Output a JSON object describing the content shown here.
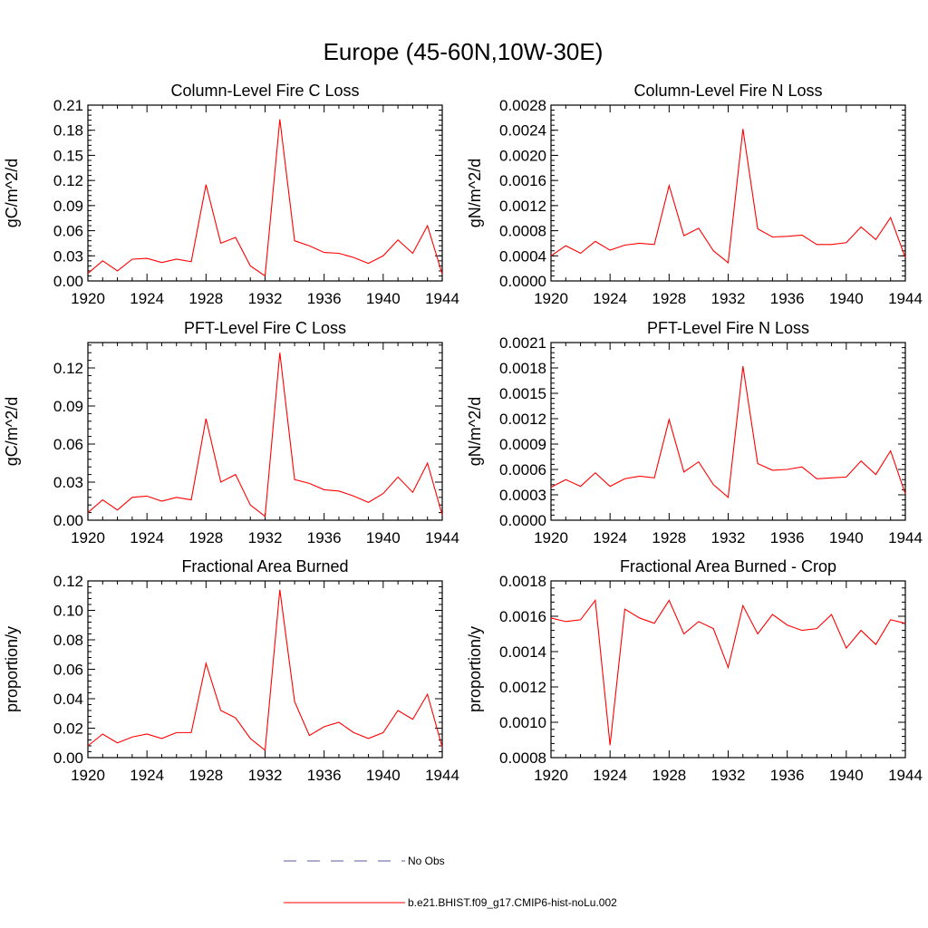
{
  "figure": {
    "title": "Europe (45-60N,10W-30E)"
  },
  "legend": {
    "items": [
      {
        "label": "No Obs",
        "color": "#5a5aa0",
        "style": "dashed"
      },
      {
        "label": "b.e21.BHIST.f09_g17.CMIP6-hist-noLu.002",
        "color": "#ff0000",
        "style": "solid"
      }
    ]
  },
  "chart_data": [
    {
      "type": "line",
      "title": "Column-Level Fire C Loss",
      "xlabel": "",
      "ylabel": "gC/m^2/d",
      "xlim": [
        1920,
        1944
      ],
      "ylim": [
        0,
        0.21
      ],
      "xticks": [
        "1920",
        "1924",
        "1928",
        "1932",
        "1936",
        "1940",
        "1944"
      ],
      "yticks": [
        "0.00",
        "0.03",
        "0.06",
        "0.09",
        "0.12",
        "0.15",
        "0.18",
        "0.21"
      ],
      "series": [
        {
          "name": "b.e21.BHIST.f09_g17.CMIP6-hist-noLu.002",
          "color": "#ff0000",
          "x": [
            1920,
            1921,
            1922,
            1923,
            1924,
            1925,
            1926,
            1927,
            1928,
            1929,
            1930,
            1931,
            1932,
            1933,
            1934,
            1935,
            1936,
            1937,
            1938,
            1939,
            1940,
            1941,
            1942,
            1943,
            1944
          ],
          "values": [
            0.009,
            0.024,
            0.012,
            0.026,
            0.027,
            0.022,
            0.026,
            0.023,
            0.115,
            0.045,
            0.052,
            0.018,
            0.006,
            0.193,
            0.048,
            0.042,
            0.034,
            0.033,
            0.028,
            0.021,
            0.03,
            0.049,
            0.033,
            0.066,
            0.008
          ]
        }
      ]
    },
    {
      "type": "line",
      "title": "Column-Level Fire N Loss",
      "xlabel": "",
      "ylabel": "gN/m^2/d",
      "xlim": [
        1920,
        1944
      ],
      "ylim": [
        0,
        0.0028
      ],
      "xticks": [
        "1920",
        "1924",
        "1928",
        "1932",
        "1936",
        "1940",
        "1944"
      ],
      "yticks": [
        "0.0000",
        "0.0004",
        "0.0008",
        "0.0012",
        "0.0016",
        "0.0020",
        "0.0024",
        "0.0028"
      ],
      "series": [
        {
          "name": "b.e21.BHIST.f09_g17.CMIP6-hist-noLu.002",
          "color": "#ff0000",
          "x": [
            1920,
            1921,
            1922,
            1923,
            1924,
            1925,
            1926,
            1927,
            1928,
            1929,
            1930,
            1931,
            1932,
            1933,
            1934,
            1935,
            1936,
            1937,
            1938,
            1939,
            1940,
            1941,
            1942,
            1943,
            1944
          ],
          "values": [
            0.0004,
            0.00056,
            0.00044,
            0.00063,
            0.00049,
            0.00057,
            0.0006,
            0.00058,
            0.00152,
            0.00072,
            0.00084,
            0.00048,
            0.00029,
            0.00242,
            0.00083,
            0.0007,
            0.00071,
            0.00073,
            0.00058,
            0.00058,
            0.00061,
            0.00086,
            0.00066,
            0.00101,
            0.00037
          ]
        }
      ]
    },
    {
      "type": "line",
      "title": "PFT-Level Fire C Loss",
      "xlabel": "",
      "ylabel": "gC/m^2/d",
      "xlim": [
        1920,
        1944
      ],
      "ylim": [
        0,
        0.14
      ],
      "xticks": [
        "1920",
        "1924",
        "1928",
        "1932",
        "1936",
        "1940",
        "1944"
      ],
      "yticks": [
        "0.00",
        "0.03",
        "0.06",
        "0.09",
        "0.12"
      ],
      "series": [
        {
          "name": "b.e21.BHIST.f09_g17.CMIP6-hist-noLu.002",
          "color": "#ff0000",
          "x": [
            1920,
            1921,
            1922,
            1923,
            1924,
            1925,
            1926,
            1927,
            1928,
            1929,
            1930,
            1931,
            1932,
            1933,
            1934,
            1935,
            1936,
            1937,
            1938,
            1939,
            1940,
            1941,
            1942,
            1943,
            1944
          ],
          "values": [
            0.006,
            0.016,
            0.008,
            0.018,
            0.019,
            0.015,
            0.018,
            0.016,
            0.08,
            0.03,
            0.036,
            0.012,
            0.003,
            0.132,
            0.032,
            0.029,
            0.024,
            0.023,
            0.019,
            0.014,
            0.021,
            0.034,
            0.022,
            0.045,
            0.004
          ]
        }
      ]
    },
    {
      "type": "line",
      "title": "PFT-Level Fire N Loss",
      "xlabel": "",
      "ylabel": "gN/m^2/d",
      "xlim": [
        1920,
        1944
      ],
      "ylim": [
        0,
        0.0021
      ],
      "xticks": [
        "1920",
        "1924",
        "1928",
        "1932",
        "1936",
        "1940",
        "1944"
      ],
      "yticks": [
        "0.0000",
        "0.0003",
        "0.0006",
        "0.0009",
        "0.0012",
        "0.0015",
        "0.0018",
        "0.0021"
      ],
      "series": [
        {
          "name": "b.e21.BHIST.f09_g17.CMIP6-hist-noLu.002",
          "color": "#ff0000",
          "x": [
            1920,
            1921,
            1922,
            1923,
            1924,
            1925,
            1926,
            1927,
            1928,
            1929,
            1930,
            1931,
            1932,
            1933,
            1934,
            1935,
            1936,
            1937,
            1938,
            1939,
            1940,
            1941,
            1942,
            1943,
            1944
          ],
          "values": [
            0.00039,
            0.00048,
            0.0004,
            0.00056,
            0.0004,
            0.00049,
            0.00052,
            0.0005,
            0.00119,
            0.00057,
            0.00069,
            0.00042,
            0.00027,
            0.00182,
            0.00067,
            0.00059,
            0.0006,
            0.00063,
            0.00049,
            0.0005,
            0.00051,
            0.0007,
            0.00054,
            0.00082,
            0.00031
          ]
        }
      ]
    },
    {
      "type": "line",
      "title": "Fractional Area Burned",
      "xlabel": "",
      "ylabel": "proportion/y",
      "xlim": [
        1920,
        1944
      ],
      "ylim": [
        0,
        0.12
      ],
      "xticks": [
        "1920",
        "1924",
        "1928",
        "1932",
        "1936",
        "1940",
        "1944"
      ],
      "yticks": [
        "0.00",
        "0.02",
        "0.04",
        "0.06",
        "0.08",
        "0.10",
        "0.12"
      ],
      "series": [
        {
          "name": "b.e21.BHIST.f09_g17.CMIP6-hist-noLu.002",
          "color": "#ff0000",
          "x": [
            1920,
            1921,
            1922,
            1923,
            1924,
            1925,
            1926,
            1927,
            1928,
            1929,
            1930,
            1931,
            1932,
            1933,
            1934,
            1935,
            1936,
            1937,
            1938,
            1939,
            1940,
            1941,
            1942,
            1943,
            1944
          ],
          "values": [
            0.008,
            0.016,
            0.01,
            0.014,
            0.016,
            0.013,
            0.017,
            0.017,
            0.064,
            0.032,
            0.027,
            0.013,
            0.005,
            0.114,
            0.038,
            0.015,
            0.021,
            0.024,
            0.017,
            0.013,
            0.017,
            0.032,
            0.026,
            0.043,
            0.007
          ]
        }
      ]
    },
    {
      "type": "line",
      "title": "Fractional Area Burned - Crop",
      "xlabel": "",
      "ylabel": "proportion/y",
      "xlim": [
        1920,
        1944
      ],
      "ylim": [
        0.0008,
        0.0018
      ],
      "xticks": [
        "1920",
        "1924",
        "1928",
        "1932",
        "1936",
        "1940",
        "1944"
      ],
      "yticks": [
        "0.0008",
        "0.0010",
        "0.0012",
        "0.0014",
        "0.0016",
        "0.0018"
      ],
      "series": [
        {
          "name": "b.e21.BHIST.f09_g17.CMIP6-hist-noLu.002",
          "color": "#ff0000",
          "x": [
            1920,
            1921,
            1922,
            1923,
            1924,
            1925,
            1926,
            1927,
            1928,
            1929,
            1930,
            1931,
            1932,
            1933,
            1934,
            1935,
            1936,
            1937,
            1938,
            1939,
            1940,
            1941,
            1942,
            1943,
            1944
          ],
          "values": [
            0.00159,
            0.00157,
            0.00158,
            0.00169,
            0.00087,
            0.00164,
            0.00159,
            0.00156,
            0.00169,
            0.0015,
            0.00157,
            0.00153,
            0.00131,
            0.00166,
            0.0015,
            0.00161,
            0.00155,
            0.00152,
            0.00153,
            0.00161,
            0.00142,
            0.00152,
            0.00144,
            0.00158,
            0.00156
          ]
        }
      ]
    }
  ]
}
